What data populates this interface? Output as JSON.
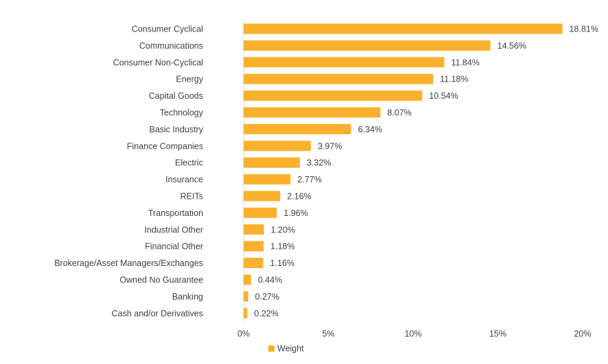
{
  "chart_data": {
    "type": "bar",
    "orientation": "horizontal",
    "categories": [
      "Consumer Cyclical",
      "Communications",
      "Consumer Non-Cyclical",
      "Energy",
      "Capital Goods",
      "Technology",
      "Basic Industry",
      "Finance Companies",
      "Electric",
      "Insurance",
      "REITs",
      "Transportation",
      "Industrial Other",
      "Financial Other",
      "Brokerage/Asset Managers/Exchanges",
      "Owned No Guarantee",
      "Banking",
      "Cash and/or Derivatives"
    ],
    "series": [
      {
        "name": "Weight",
        "values": [
          18.81,
          14.56,
          11.84,
          11.18,
          10.54,
          8.07,
          6.34,
          3.97,
          3.32,
          2.77,
          2.16,
          1.96,
          1.2,
          1.18,
          1.16,
          0.44,
          0.27,
          0.22
        ],
        "labels": [
          "18.81%",
          "14.56%",
          "11.84%",
          "11.18%",
          "10.54%",
          "8.07%",
          "6.34%",
          "3.97%",
          "3.32%",
          "2.77%",
          "2.16%",
          "1.96%",
          "1.20%",
          "1.18%",
          "1.16%",
          "0.44%",
          "0.27%",
          "0.22%"
        ],
        "color": "#FBB12D"
      }
    ],
    "xlim": [
      0,
      20
    ],
    "xticks": [
      0,
      5,
      10,
      15,
      20
    ],
    "xtick_labels": [
      "0%",
      "5%",
      "10%",
      "15%",
      "20%"
    ],
    "legend": {
      "position": "bottom",
      "entries": [
        "Weight"
      ]
    },
    "title": "",
    "xlabel": "",
    "ylabel": "",
    "grid": false
  }
}
